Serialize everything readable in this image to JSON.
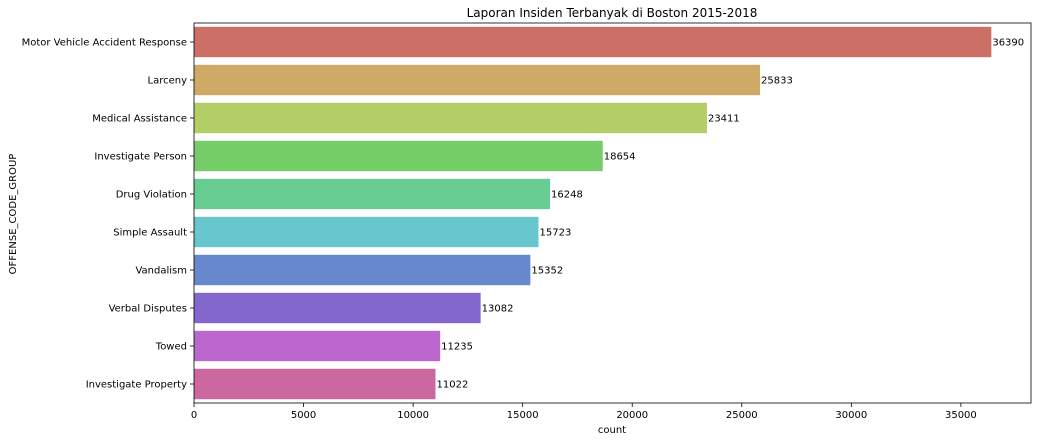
{
  "chart_data": {
    "type": "bar",
    "orientation": "horizontal",
    "title": "Laporan Insiden Terbanyak di Boston 2015-2018",
    "xlabel": "count",
    "ylabel": "OFFENSE_CODE_GROUP",
    "categories": [
      "Motor Vehicle Accident Response",
      "Larceny",
      "Medical Assistance",
      "Investigate Person",
      "Drug Violation",
      "Simple Assault",
      "Vandalism",
      "Verbal Disputes",
      "Towed",
      "Investigate Property"
    ],
    "values": [
      36390,
      25833,
      23411,
      18654,
      16248,
      15723,
      15352,
      13082,
      11235,
      11022
    ],
    "colors": [
      "#cc6f67",
      "#cfaa67",
      "#b3cd67",
      "#74cd67",
      "#67cd93",
      "#67c7cd",
      "#6788cd",
      "#8367cd",
      "#bc67cd",
      "#cd67a0"
    ],
    "xlim": [
      0,
      38200
    ],
    "xticks": [
      0,
      5000,
      10000,
      15000,
      20000,
      25000,
      30000,
      35000
    ],
    "grid": false,
    "legend": "none"
  }
}
